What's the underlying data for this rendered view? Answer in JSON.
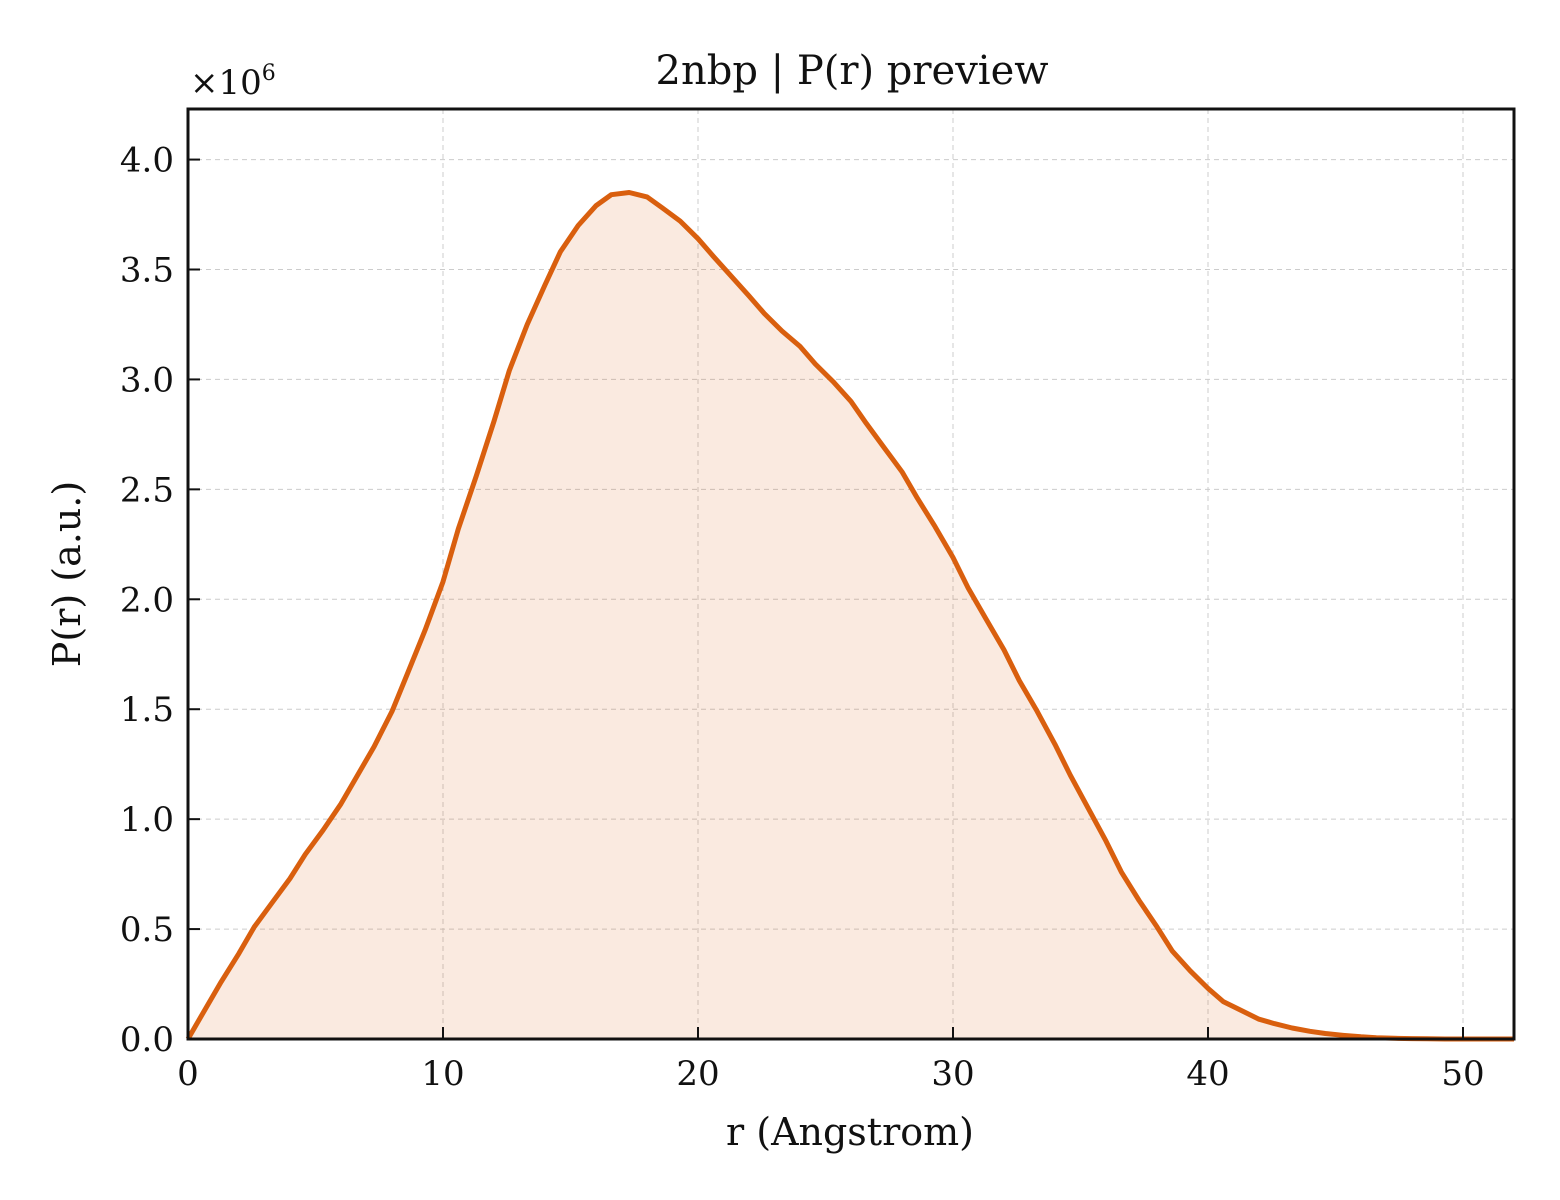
{
  "chart_data": {
    "type": "area",
    "title": "2nbp | P(r) preview",
    "xlabel": "r (Angstrom)",
    "ylabel": "P(r) (a.u.)",
    "y_multiplier_label": "×10",
    "y_multiplier_exponent": "6",
    "xlim": [
      0,
      52
    ],
    "ylim": [
      0,
      4.23
    ],
    "xticks": [
      0,
      10,
      20,
      30,
      40,
      50
    ],
    "xtick_labels": [
      "0",
      "10",
      "20",
      "30",
      "40",
      "50"
    ],
    "yticks": [
      0,
      0.5,
      1.0,
      1.5,
      2.0,
      2.5,
      3.0,
      3.5,
      4.0
    ],
    "ytick_labels": [
      "0.0",
      "0.5",
      "1.0",
      "1.5",
      "2.0",
      "2.5",
      "3.0",
      "3.5",
      "4.0"
    ],
    "grid": true,
    "line_color": "#d95f0e",
    "fill_color": "#d95f0e",
    "fill_opacity": 0.13,
    "x": [
      0,
      0.7,
      1.3,
      2.0,
      2.6,
      3.3,
      4.0,
      4.6,
      5.3,
      6.0,
      6.6,
      7.3,
      8.0,
      8.6,
      9.3,
      10.0,
      10.6,
      11.3,
      12.0,
      12.6,
      13.3,
      14.0,
      14.6,
      15.3,
      16.0,
      16.6,
      17.3,
      18.0,
      18.6,
      19.3,
      20.0,
      20.6,
      21.3,
      22.0,
      22.6,
      23.3,
      24.0,
      24.6,
      25.3,
      26.0,
      26.6,
      27.3,
      28.0,
      28.6,
      29.3,
      30.0,
      30.6,
      31.3,
      32.0,
      32.6,
      33.3,
      34.0,
      34.6,
      35.3,
      36.0,
      36.6,
      37.3,
      38.0,
      38.6,
      39.3,
      40.0,
      40.6,
      41.3,
      42.0,
      42.6,
      43.3,
      44.0,
      44.6,
      45.3,
      46.0,
      46.6,
      47.3,
      48.0,
      48.6,
      49.3,
      50.0,
      50.6,
      51.3,
      52.0
    ],
    "y": [
      0.0,
      0.14,
      0.26,
      0.39,
      0.51,
      0.62,
      0.73,
      0.84,
      0.95,
      1.07,
      1.19,
      1.33,
      1.49,
      1.66,
      1.86,
      2.08,
      2.32,
      2.56,
      2.81,
      3.04,
      3.25,
      3.43,
      3.58,
      3.7,
      3.79,
      3.84,
      3.85,
      3.83,
      3.78,
      3.72,
      3.64,
      3.56,
      3.47,
      3.38,
      3.3,
      3.22,
      3.15,
      3.07,
      2.99,
      2.9,
      2.8,
      2.69,
      2.58,
      2.46,
      2.33,
      2.19,
      2.05,
      1.91,
      1.77,
      1.63,
      1.49,
      1.34,
      1.2,
      1.05,
      0.9,
      0.76,
      0.63,
      0.51,
      0.4,
      0.31,
      0.23,
      0.17,
      0.13,
      0.09,
      0.07,
      0.05,
      0.035,
      0.025,
      0.017,
      0.01,
      0.006,
      0.003,
      0.002,
      0.001,
      0.0,
      0.0,
      0.0,
      0.0,
      0.0
    ]
  }
}
